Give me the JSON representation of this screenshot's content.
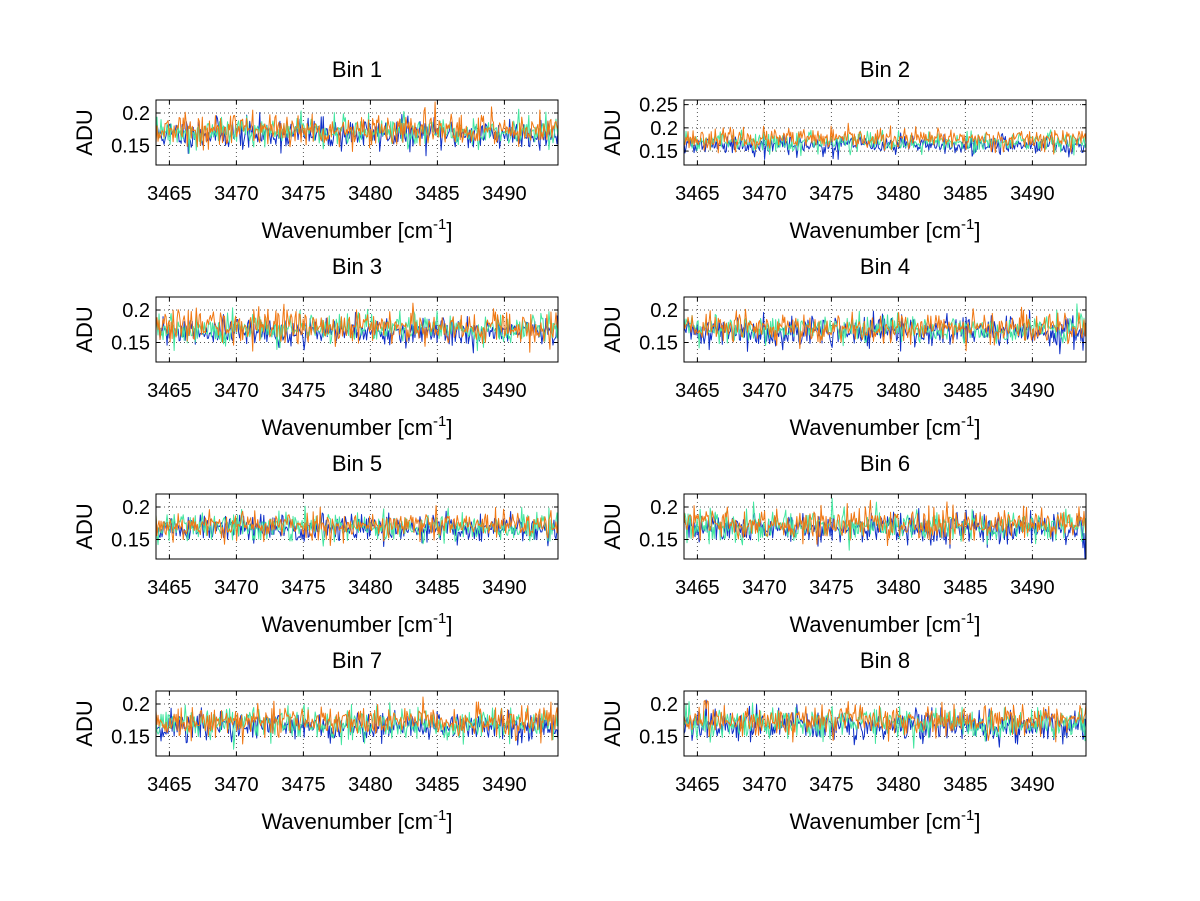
{
  "figure": {
    "background": "#ffffff"
  },
  "series_colors": [
    {
      "name": "blue",
      "hex": "#1030c8"
    },
    {
      "name": "cyan-green",
      "hex": "#44e6a0"
    },
    {
      "name": "orange",
      "hex": "#f07814"
    }
  ],
  "chart_data": [
    {
      "type": "line",
      "title": "Bin 1",
      "xlabel_main": "Wavenumber [cm",
      "xlabel_sup": "-1",
      "xlabel_end": "]",
      "ylabel": "ADU",
      "xlim": [
        3464.0,
        3494.0
      ],
      "ylim": [
        0.12,
        0.22
      ],
      "xticks": [
        3465,
        3470,
        3475,
        3480,
        3485,
        3490
      ],
      "xtick_labels": [
        "3465",
        "3470",
        "3475",
        "3480",
        "3485",
        "3490"
      ],
      "yticks": [
        0.15,
        0.2
      ],
      "ytick_labels": [
        "0.15",
        "0.2"
      ],
      "grid": true,
      "n_points": 400,
      "series": [
        {
          "name": "blue",
          "mean": 0.168,
          "noise": 0.012,
          "seed": 11
        },
        {
          "name": "cyan-green",
          "mean": 0.172,
          "noise": 0.011,
          "seed": 12
        },
        {
          "name": "orange",
          "mean": 0.174,
          "noise": 0.013,
          "seed": 13
        }
      ]
    },
    {
      "type": "line",
      "title": "Bin 2",
      "xlabel_main": "Wavenumber [cm",
      "xlabel_sup": "-1",
      "xlabel_end": "]",
      "ylabel": "ADU",
      "xlim": [
        3464.0,
        3494.0
      ],
      "ylim": [
        0.12,
        0.26
      ],
      "xticks": [
        3465,
        3470,
        3475,
        3480,
        3485,
        3490
      ],
      "xtick_labels": [
        "3465",
        "3470",
        "3475",
        "3480",
        "3485",
        "3490"
      ],
      "yticks": [
        0.15,
        0.2,
        0.25
      ],
      "ytick_labels": [
        "0.15",
        "0.2",
        "0.25"
      ],
      "grid": true,
      "n_points": 400,
      "series": [
        {
          "name": "blue",
          "mean": 0.163,
          "noise": 0.01,
          "seed": 21
        },
        {
          "name": "cyan-green",
          "mean": 0.17,
          "noise": 0.01,
          "seed": 22
        },
        {
          "name": "orange",
          "mean": 0.176,
          "noise": 0.011,
          "seed": 23
        }
      ]
    },
    {
      "type": "line",
      "title": "Bin 3",
      "xlabel_main": "Wavenumber [cm",
      "xlabel_sup": "-1",
      "xlabel_end": "]",
      "ylabel": "ADU",
      "xlim": [
        3464.0,
        3494.0
      ],
      "ylim": [
        0.12,
        0.22
      ],
      "xticks": [
        3465,
        3470,
        3475,
        3480,
        3485,
        3490
      ],
      "xtick_labels": [
        "3465",
        "3470",
        "3475",
        "3480",
        "3485",
        "3490"
      ],
      "yticks": [
        0.15,
        0.2
      ],
      "ytick_labels": [
        "0.15",
        "0.2"
      ],
      "grid": true,
      "n_points": 400,
      "series": [
        {
          "name": "blue",
          "mean": 0.166,
          "noise": 0.011,
          "seed": 31
        },
        {
          "name": "cyan-green",
          "mean": 0.171,
          "noise": 0.012,
          "seed": 32
        },
        {
          "name": "orange",
          "mean": 0.175,
          "noise": 0.013,
          "seed": 33
        }
      ]
    },
    {
      "type": "line",
      "title": "Bin 4",
      "xlabel_main": "Wavenumber [cm",
      "xlabel_sup": "-1",
      "xlabel_end": "]",
      "ylabel": "ADU",
      "xlim": [
        3464.0,
        3494.0
      ],
      "ylim": [
        0.12,
        0.22
      ],
      "xticks": [
        3465,
        3470,
        3475,
        3480,
        3485,
        3490
      ],
      "xtick_labels": [
        "3465",
        "3470",
        "3475",
        "3480",
        "3485",
        "3490"
      ],
      "yticks": [
        0.15,
        0.2
      ],
      "ytick_labels": [
        "0.15",
        "0.2"
      ],
      "grid": true,
      "n_points": 400,
      "series": [
        {
          "name": "blue",
          "mean": 0.167,
          "noise": 0.012,
          "seed": 41
        },
        {
          "name": "cyan-green",
          "mean": 0.171,
          "noise": 0.011,
          "seed": 42
        },
        {
          "name": "orange",
          "mean": 0.173,
          "noise": 0.012,
          "seed": 43
        }
      ]
    },
    {
      "type": "line",
      "title": "Bin 5",
      "xlabel_main": "Wavenumber [cm",
      "xlabel_sup": "-1",
      "xlabel_end": "]",
      "ylabel": "ADU",
      "xlim": [
        3464.0,
        3494.0
      ],
      "ylim": [
        0.12,
        0.22
      ],
      "xticks": [
        3465,
        3470,
        3475,
        3480,
        3485,
        3490
      ],
      "xtick_labels": [
        "3465",
        "3470",
        "3475",
        "3480",
        "3485",
        "3490"
      ],
      "yticks": [
        0.15,
        0.2
      ],
      "ytick_labels": [
        "0.15",
        "0.2"
      ],
      "grid": true,
      "n_points": 400,
      "series": [
        {
          "name": "blue",
          "mean": 0.167,
          "noise": 0.011,
          "seed": 51
        },
        {
          "name": "cyan-green",
          "mean": 0.17,
          "noise": 0.011,
          "seed": 52
        },
        {
          "name": "orange",
          "mean": 0.172,
          "noise": 0.011,
          "seed": 53
        }
      ]
    },
    {
      "type": "line",
      "title": "Bin 6",
      "xlabel_main": "Wavenumber [cm",
      "xlabel_sup": "-1",
      "xlabel_end": "]",
      "ylabel": "ADU",
      "xlim": [
        3464.0,
        3494.0
      ],
      "ylim": [
        0.12,
        0.22
      ],
      "xticks": [
        3465,
        3470,
        3475,
        3480,
        3485,
        3490
      ],
      "xtick_labels": [
        "3465",
        "3470",
        "3475",
        "3480",
        "3485",
        "3490"
      ],
      "yticks": [
        0.15,
        0.2
      ],
      "ytick_labels": [
        "0.15",
        "0.2"
      ],
      "grid": true,
      "n_points": 400,
      "series": [
        {
          "name": "blue",
          "mean": 0.168,
          "noise": 0.012,
          "seed": 61
        },
        {
          "name": "cyan-green",
          "mean": 0.171,
          "noise": 0.012,
          "seed": 62
        },
        {
          "name": "orange",
          "mean": 0.174,
          "noise": 0.012,
          "seed": 63
        }
      ]
    },
    {
      "type": "line",
      "title": "Bin 7",
      "xlabel_main": "Wavenumber [cm",
      "xlabel_sup": "-1",
      "xlabel_end": "]",
      "ylabel": "ADU",
      "xlim": [
        3464.0,
        3494.0
      ],
      "ylim": [
        0.12,
        0.22
      ],
      "xticks": [
        3465,
        3470,
        3475,
        3480,
        3485,
        3490
      ],
      "xtick_labels": [
        "3465",
        "3470",
        "3475",
        "3480",
        "3485",
        "3490"
      ],
      "yticks": [
        0.15,
        0.2
      ],
      "ytick_labels": [
        "0.15",
        "0.2"
      ],
      "grid": true,
      "n_points": 400,
      "series": [
        {
          "name": "blue",
          "mean": 0.166,
          "noise": 0.012,
          "seed": 71
        },
        {
          "name": "cyan-green",
          "mean": 0.17,
          "noise": 0.012,
          "seed": 72
        },
        {
          "name": "orange",
          "mean": 0.174,
          "noise": 0.012,
          "seed": 73
        }
      ]
    },
    {
      "type": "line",
      "title": "Bin 8",
      "xlabel_main": "Wavenumber [cm",
      "xlabel_sup": "-1",
      "xlabel_end": "]",
      "ylabel": "ADU",
      "xlim": [
        3464.0,
        3494.0
      ],
      "ylim": [
        0.12,
        0.22
      ],
      "xticks": [
        3465,
        3470,
        3475,
        3480,
        3485,
        3490
      ],
      "xtick_labels": [
        "3465",
        "3470",
        "3475",
        "3480",
        "3485",
        "3490"
      ],
      "yticks": [
        0.15,
        0.2
      ],
      "ytick_labels": [
        "0.15",
        "0.2"
      ],
      "grid": true,
      "n_points": 400,
      "series": [
        {
          "name": "blue",
          "mean": 0.168,
          "noise": 0.012,
          "seed": 81
        },
        {
          "name": "cyan-green",
          "mean": 0.171,
          "noise": 0.012,
          "seed": 82
        },
        {
          "name": "orange",
          "mean": 0.175,
          "noise": 0.012,
          "seed": 83
        }
      ]
    }
  ]
}
